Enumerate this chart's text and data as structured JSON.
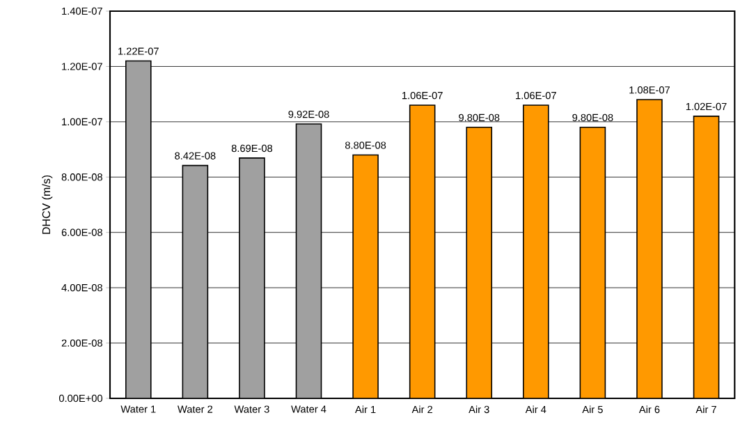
{
  "chart_data": {
    "type": "bar",
    "ylabel": "DHCV (m/s)",
    "categories": [
      "Water 1",
      "Water 2",
      "Water 3",
      "Water 4",
      "Air 1",
      "Air 2",
      "Air 3",
      "Air 4",
      "Air 5",
      "Air 6",
      "Air 7"
    ],
    "values": [
      1.22e-07,
      8.42e-08,
      8.69e-08,
      9.92e-08,
      8.8e-08,
      1.06e-07,
      9.8e-08,
      1.06e-07,
      9.8e-08,
      1.08e-07,
      1.02e-07
    ],
    "colors": [
      "#a0a0a0",
      "#a0a0a0",
      "#a0a0a0",
      "#a0a0a0",
      "#ff9900",
      "#ff9900",
      "#ff9900",
      "#ff9900",
      "#ff9900",
      "#ff9900",
      "#ff9900"
    ],
    "value_labels": [
      "1.22E-07",
      "8.42E-08",
      "8.69E-08",
      "9.92E-08",
      "8.80E-08",
      "1.06E-07",
      "9.80E-08",
      "1.06E-07",
      "9.80E-08",
      "1.08E-07",
      "1.02E-07"
    ],
    "ylim": [
      0,
      1.4e-07
    ],
    "yticks": [
      {
        "value": 0,
        "label": "0.00E+00"
      },
      {
        "value": 2e-08,
        "label": "2.00E-08"
      },
      {
        "value": 4e-08,
        "label": "4.00E-08"
      },
      {
        "value": 6e-08,
        "label": "6.00E-08"
      },
      {
        "value": 8e-08,
        "label": "8.00E-08"
      },
      {
        "value": 1e-07,
        "label": "1.00E-07"
      },
      {
        "value": 1.2e-07,
        "label": "1.20E-07"
      },
      {
        "value": 1.4e-07,
        "label": "1.40E-07"
      }
    ],
    "grid": "y"
  }
}
